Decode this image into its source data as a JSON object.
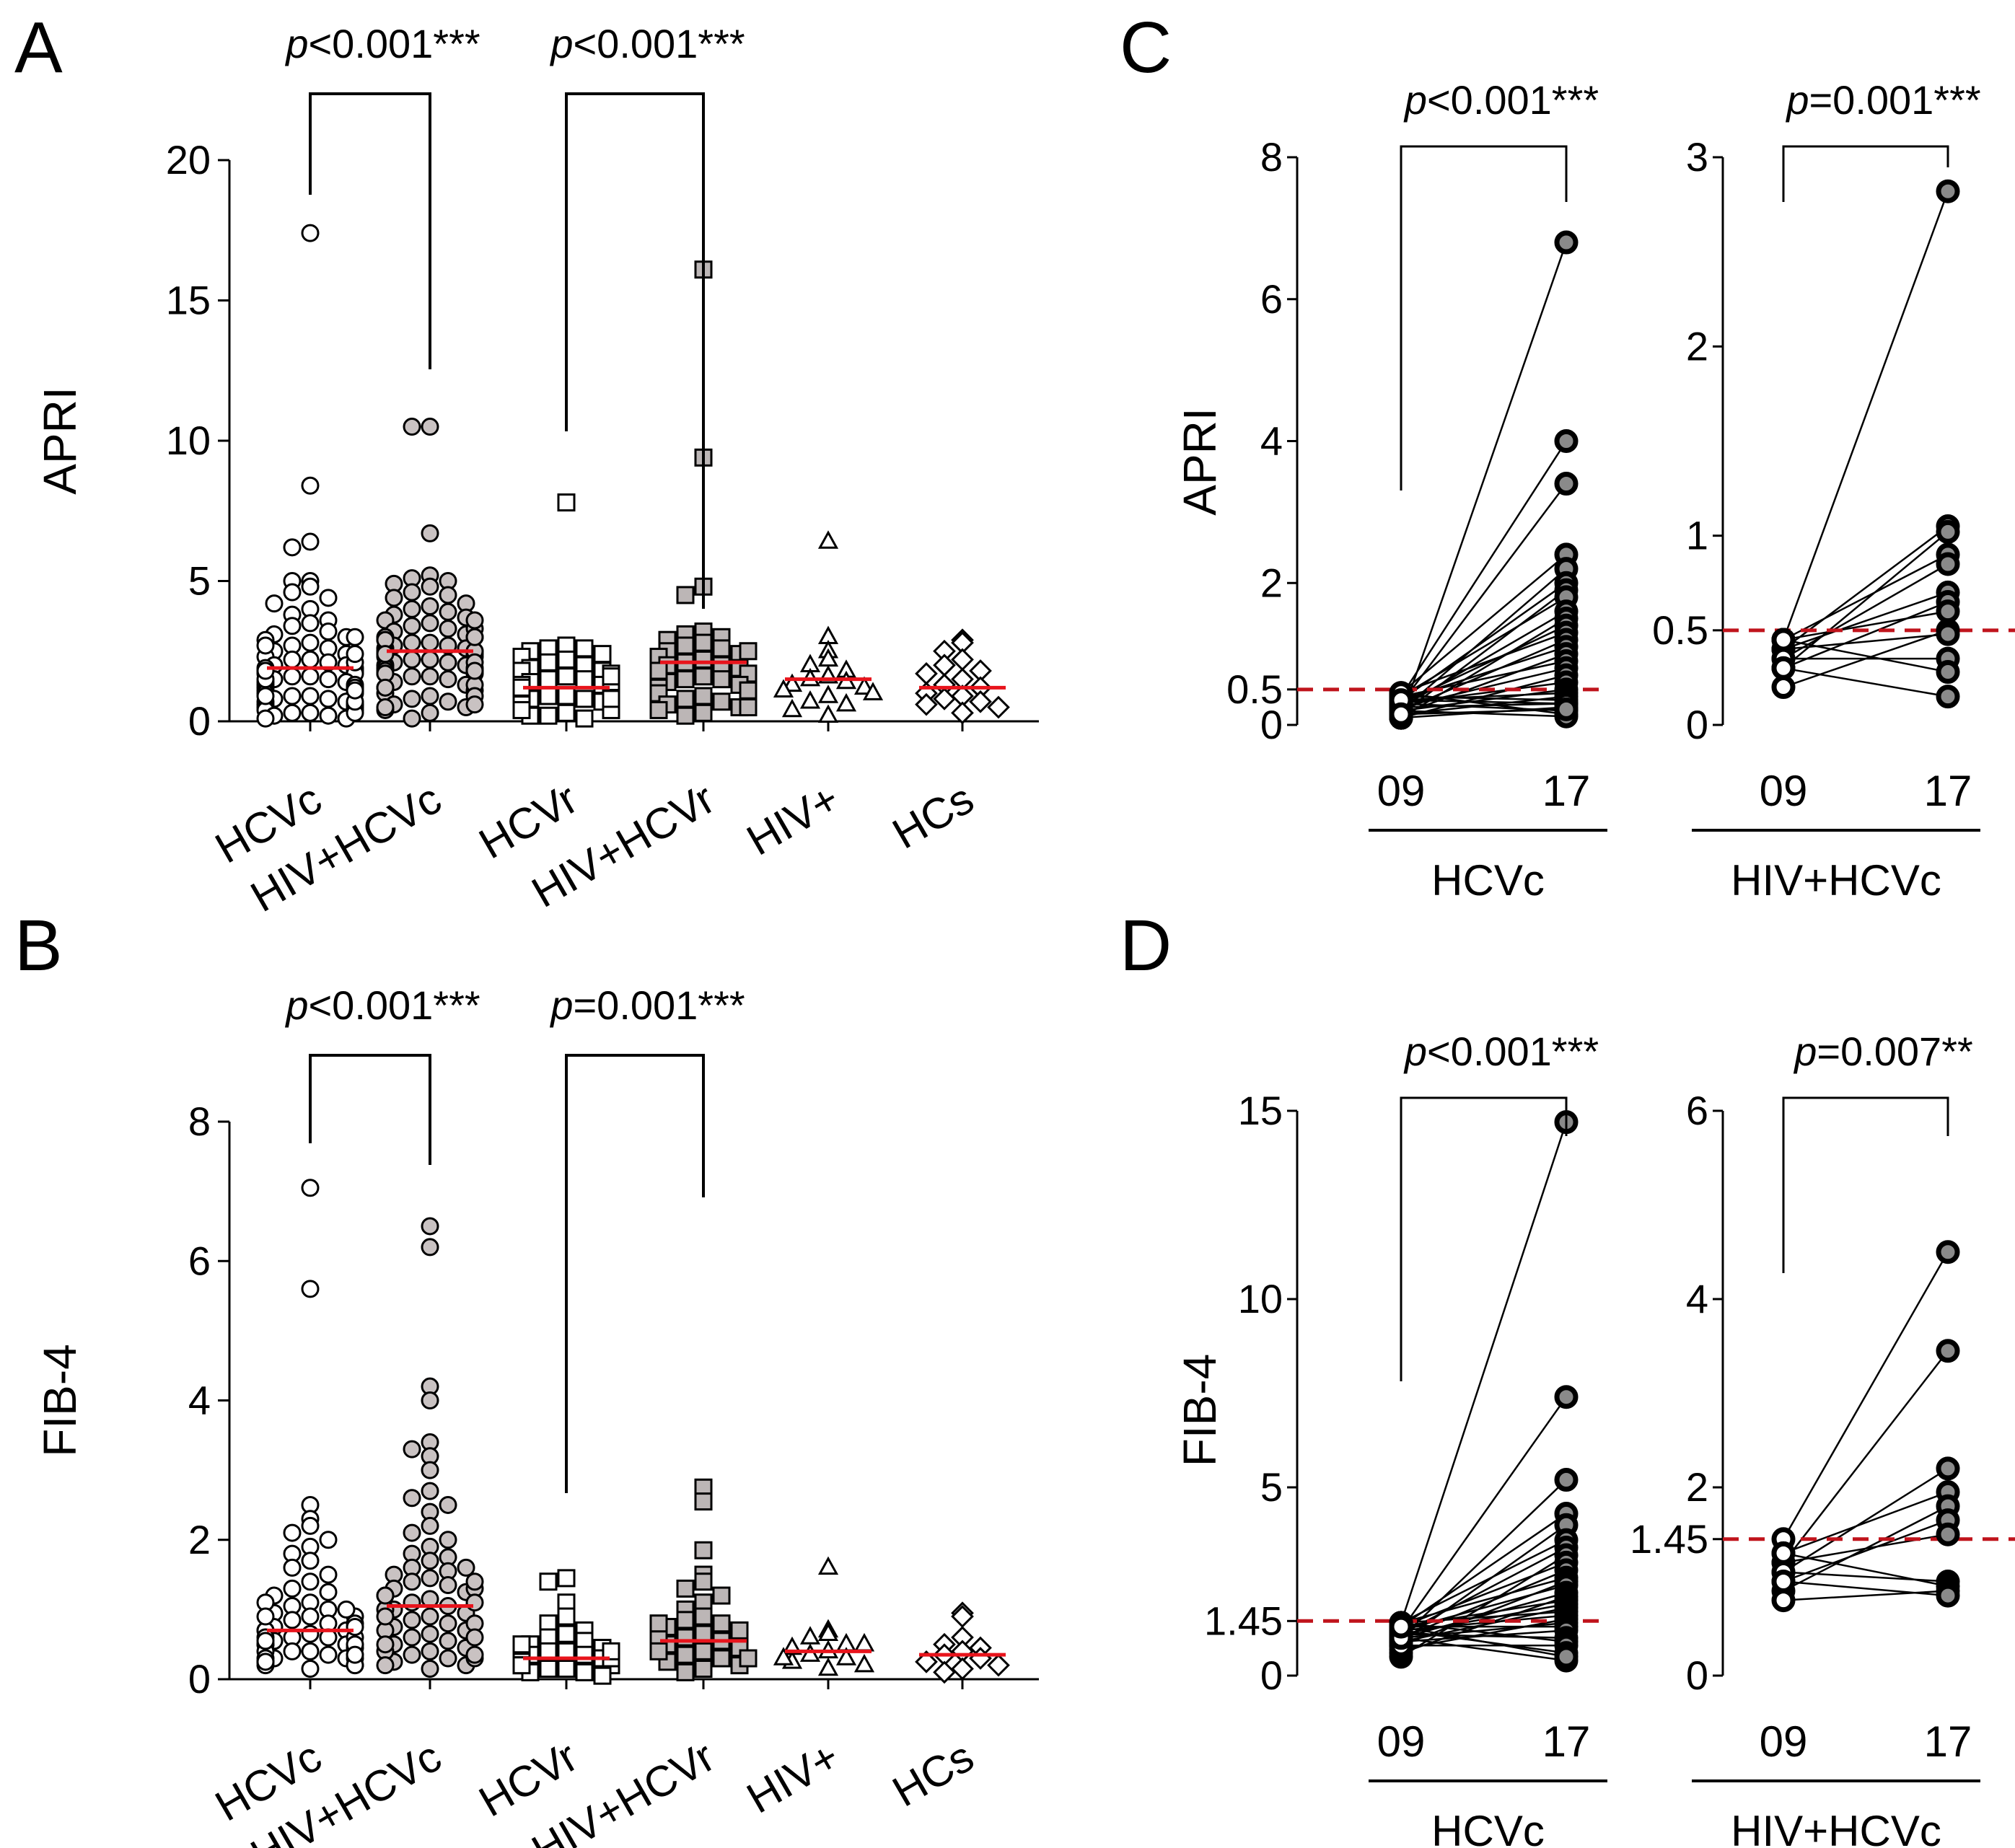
{
  "chart_data": [
    {
      "id": "A",
      "type": "scatter",
      "panel_label": "A",
      "ylabel": "APRI",
      "ylim": [
        0,
        20
      ],
      "yticks": [
        "0",
        "5",
        "10",
        "15",
        "20"
      ],
      "categories": [
        "HCVc",
        "HIV+HCVc",
        "HCVr",
        "HIV+HCVr",
        "HIV+",
        "HCs"
      ],
      "comparisons": [
        {
          "from": "HCVc",
          "to": "HIV+HCVc",
          "p_italic": "p",
          "p_text": "<0.001***"
        },
        {
          "from": "HCVr",
          "to": "HIV+HCVr",
          "p_italic": "p",
          "p_text": "<0.001***"
        }
      ],
      "median_color": "#e8141c",
      "groups": [
        {
          "name": "HCVc",
          "marker": "circle",
          "fill": "#ffffff",
          "median": 1.9,
          "values": [
            17.4,
            8.4,
            6.4,
            6.2,
            5.0,
            5.0,
            4.8,
            4.6,
            4.4,
            4.2,
            4.0,
            3.8,
            3.6,
            3.5,
            3.4,
            3.2,
            3.1,
            3.0,
            2.9,
            2.8,
            2.7,
            2.6,
            2.5,
            2.4,
            2.3,
            2.2,
            2.2,
            2.1,
            2.0,
            2.0,
            1.9,
            1.9,
            1.8,
            1.8,
            1.7,
            1.7,
            1.6,
            1.6,
            1.5,
            1.5,
            1.4,
            1.4,
            1.3,
            1.3,
            1.2,
            1.2,
            1.1,
            1.1,
            1.0,
            1.0,
            0.9,
            0.9,
            0.8,
            0.8,
            0.7,
            0.7,
            0.6,
            0.6,
            0.5,
            0.5,
            0.4,
            0.4,
            0.3,
            0.3,
            0.2,
            0.2,
            0.1,
            0.1,
            0.6,
            0.9,
            1.2,
            1.5,
            1.8,
            2.1,
            2.4,
            2.7,
            3.0,
            0.3,
            0.7,
            1.1
          ]
        },
        {
          "name": "HIV+HCVc",
          "marker": "circle",
          "fill": "#c9c2c2",
          "median": 2.5,
          "values": [
            10.5,
            10.5,
            6.7,
            5.2,
            5.1,
            5.0,
            4.9,
            4.8,
            4.6,
            4.5,
            4.4,
            4.2,
            4.1,
            4.0,
            3.9,
            3.8,
            3.7,
            3.6,
            3.5,
            3.4,
            3.3,
            3.2,
            3.1,
            3.0,
            3.0,
            2.9,
            2.8,
            2.8,
            2.7,
            2.7,
            2.6,
            2.6,
            2.5,
            2.5,
            2.4,
            2.4,
            2.3,
            2.3,
            2.2,
            2.2,
            2.1,
            2.1,
            2.0,
            2.0,
            1.9,
            1.9,
            1.8,
            1.8,
            1.7,
            1.7,
            1.6,
            1.6,
            1.5,
            1.4,
            1.3,
            1.2,
            1.1,
            1.0,
            0.9,
            0.8,
            0.7,
            0.6,
            0.5,
            0.4,
            0.3,
            0.1,
            3.3,
            2.9,
            2.5,
            2.1,
            1.7,
            1.3,
            0.9,
            0.5,
            3.6,
            3.0,
            2.4,
            1.8,
            1.2,
            0.6
          ]
        },
        {
          "name": "HCVr",
          "marker": "square",
          "fill": "#ffffff",
          "median": 1.2,
          "values": [
            7.8,
            2.7,
            2.6,
            2.6,
            2.5,
            2.4,
            2.3,
            2.2,
            2.1,
            2.0,
            1.9,
            1.8,
            1.8,
            1.7,
            1.6,
            1.5,
            1.5,
            1.4,
            1.3,
            1.3,
            1.2,
            1.2,
            1.1,
            1.1,
            1.0,
            1.0,
            0.9,
            0.9,
            0.8,
            0.8,
            0.7,
            0.7,
            0.6,
            0.6,
            0.5,
            0.5,
            0.4,
            0.3,
            0.2,
            0.1,
            1.4,
            1.0,
            0.6,
            0.2,
            1.6,
            1.2,
            0.8,
            0.4
          ]
        },
        {
          "name": "HIV+HCVr",
          "marker": "square",
          "fill": "#bcb6b6",
          "median": 2.1,
          "values": [
            16.1,
            9.4,
            4.8,
            4.5,
            3.2,
            3.1,
            3.0,
            2.9,
            2.8,
            2.7,
            2.6,
            2.5,
            2.4,
            2.3,
            2.2,
            2.1,
            2.0,
            2.0,
            1.9,
            1.8,
            1.7,
            1.6,
            1.5,
            1.5,
            1.4,
            1.3,
            1.2,
            1.1,
            1.0,
            0.9,
            0.8,
            0.7,
            0.6,
            0.5,
            0.4,
            0.3,
            0.2,
            2.5,
            1.8,
            1.1,
            0.5
          ]
        },
        {
          "name": "HIV+",
          "marker": "triangle",
          "fill": "#ffffff",
          "median": 1.5,
          "values": [
            6.4,
            3.0,
            2.5,
            2.2,
            2.0,
            1.8,
            1.6,
            1.5,
            1.4,
            1.3,
            1.2,
            1.1,
            1.0,
            0.9,
            0.7,
            0.6,
            0.4,
            0.2
          ]
        },
        {
          "name": "HCs",
          "marker": "diamond",
          "fill": "#ffffff",
          "median": 1.2,
          "values": [
            2.9,
            2.8,
            2.5,
            2.2,
            2.0,
            1.8,
            1.7,
            1.5,
            1.3,
            1.2,
            1.0,
            0.9,
            0.8,
            0.7,
            0.6,
            0.5,
            0.3
          ]
        }
      ]
    },
    {
      "id": "B",
      "type": "scatter",
      "panel_label": "B",
      "ylabel": "FIB-4",
      "ylim": [
        0,
        8
      ],
      "yticks": [
        "0",
        "2",
        "4",
        "6",
        "8"
      ],
      "categories": [
        "HCVc",
        "HIV+HCVc",
        "HCVr",
        "HIV+HCVr",
        "HIV+",
        "HCs"
      ],
      "comparisons": [
        {
          "from": "HCVc",
          "to": "HIV+HCVc",
          "p_italic": "p",
          "p_text": "<0.001***"
        },
        {
          "from": "HCVr",
          "to": "HIV+HCVr",
          "p_italic": "p",
          "p_text": "=0.001***"
        }
      ],
      "median_color": "#e8141c",
      "groups": [
        {
          "name": "HCVc",
          "marker": "circle",
          "fill": "#ffffff",
          "median": 0.7,
          "values": [
            7.05,
            5.6,
            2.5,
            2.3,
            2.2,
            2.1,
            2.0,
            1.9,
            1.8,
            1.7,
            1.6,
            1.5,
            1.4,
            1.3,
            1.25,
            1.2,
            1.1,
            1.05,
            1.0,
            0.95,
            0.9,
            0.85,
            0.8,
            0.75,
            0.7,
            0.7,
            0.65,
            0.6,
            0.6,
            0.55,
            0.5,
            0.5,
            0.45,
            0.4,
            0.4,
            0.35,
            0.3,
            0.3,
            0.25,
            0.2,
            0.2,
            0.15,
            0.9,
            0.7,
            0.5,
            0.3,
            1.0,
            0.8,
            0.6,
            0.4,
            0.2,
            1.1,
            0.9,
            0.6,
            0.3,
            0.5,
            0.35,
            0.25,
            0.75,
            0.55
          ]
        },
        {
          "name": "HIV+HCVc",
          "marker": "circle",
          "fill": "#c9c2c2",
          "median": 1.05,
          "values": [
            6.5,
            6.2,
            4.2,
            4.0,
            3.4,
            3.3,
            3.2,
            3.0,
            2.7,
            2.6,
            2.5,
            2.4,
            2.2,
            2.1,
            2.0,
            1.9,
            1.8,
            1.75,
            1.7,
            1.6,
            1.55,
            1.5,
            1.45,
            1.4,
            1.35,
            1.3,
            1.25,
            1.2,
            1.15,
            1.1,
            1.05,
            1.0,
            0.95,
            0.9,
            0.85,
            0.8,
            0.75,
            0.7,
            0.65,
            0.6,
            0.55,
            0.5,
            0.45,
            0.4,
            0.35,
            0.3,
            0.25,
            0.2,
            0.15,
            1.3,
            1.0,
            0.7,
            0.4,
            1.6,
            1.2,
            0.8,
            0.5,
            0.3,
            1.1,
            0.6,
            0.9,
            0.2,
            1.4,
            0.35
          ]
        },
        {
          "name": "HCVr",
          "marker": "square",
          "fill": "#ffffff",
          "median": 0.3,
          "values": [
            1.45,
            1.4,
            1.1,
            0.9,
            0.8,
            0.7,
            0.65,
            0.6,
            0.55,
            0.5,
            0.45,
            0.4,
            0.4,
            0.35,
            0.35,
            0.3,
            0.3,
            0.25,
            0.25,
            0.2,
            0.2,
            0.15,
            0.15,
            0.1,
            0.1,
            0.05,
            0.5,
            0.3,
            0.2,
            0.4
          ]
        },
        {
          "name": "HIV+HCVr",
          "marker": "square",
          "fill": "#bcb6b6",
          "median": 0.55,
          "values": [
            2.75,
            2.55,
            1.85,
            1.5,
            1.4,
            1.3,
            1.2,
            1.1,
            1.0,
            0.9,
            0.85,
            0.8,
            0.75,
            0.7,
            0.65,
            0.6,
            0.55,
            0.5,
            0.45,
            0.4,
            0.35,
            0.3,
            0.25,
            0.2,
            0.15,
            0.1,
            0.6,
            0.4,
            0.3,
            0.8
          ]
        },
        {
          "name": "HIV+",
          "marker": "triangle",
          "fill": "#ffffff",
          "median": 0.4,
          "values": [
            1.6,
            0.7,
            0.65,
            0.6,
            0.5,
            0.45,
            0.4,
            0.35,
            0.3,
            0.25,
            0.2,
            0.15,
            0.5,
            0.3
          ]
        },
        {
          "name": "HCs",
          "marker": "diamond",
          "fill": "#ffffff",
          "median": 0.35,
          "values": [
            0.95,
            0.9,
            0.6,
            0.5,
            0.45,
            0.4,
            0.35,
            0.3,
            0.25,
            0.2,
            0.15,
            0.1
          ]
        }
      ]
    },
    {
      "id": "C1",
      "type": "line",
      "panel_label": "C",
      "ylabel": "APRI",
      "ylim": [
        0,
        8
      ],
      "yticks": [
        "0",
        "0.5",
        "2",
        "4",
        "6",
        "8"
      ],
      "ytick_values": [
        0,
        0.5,
        2,
        4,
        6,
        8
      ],
      "x": [
        "09",
        "17"
      ],
      "group_label": "HCVc",
      "threshold": 0.5,
      "threshold_color": "#c0141c",
      "comparison": {
        "p_italic": "p",
        "p_text": "<0.001***"
      },
      "pairs": [
        [
          0.1,
          6.8
        ],
        [
          0.4,
          4.0
        ],
        [
          0.3,
          3.4
        ],
        [
          0.45,
          2.4
        ],
        [
          0.2,
          2.2
        ],
        [
          0.35,
          2.0
        ],
        [
          0.15,
          1.9
        ],
        [
          0.4,
          1.8
        ],
        [
          0.25,
          1.6
        ],
        [
          0.1,
          1.5
        ],
        [
          0.3,
          1.4
        ],
        [
          0.45,
          1.3
        ],
        [
          0.2,
          1.2
        ],
        [
          0.35,
          1.1
        ],
        [
          0.15,
          1.0
        ],
        [
          0.4,
          0.9
        ],
        [
          0.25,
          0.8
        ],
        [
          0.1,
          0.7
        ],
        [
          0.3,
          0.6
        ],
        [
          0.2,
          0.5
        ],
        [
          0.35,
          0.45
        ],
        [
          0.15,
          0.4
        ],
        [
          0.4,
          0.35
        ],
        [
          0.25,
          0.3
        ],
        [
          0.1,
          0.25
        ],
        [
          0.3,
          0.2
        ],
        [
          0.45,
          0.15
        ],
        [
          0.2,
          0.12
        ],
        [
          0.35,
          0.3
        ],
        [
          0.15,
          0.22
        ]
      ]
    },
    {
      "id": "C2",
      "type": "line",
      "ylim": [
        0,
        3
      ],
      "yticks": [
        "0",
        "0.5",
        "1",
        "2",
        "3"
      ],
      "ytick_values": [
        0,
        0.5,
        1,
        2,
        3
      ],
      "x": [
        "09",
        "17"
      ],
      "group_label": "HIV+HCVc",
      "threshold": 0.5,
      "threshold_color": "#c0141c",
      "comparison": {
        "p_italic": "p",
        "p_text": "=0.001***"
      },
      "pairs": [
        [
          0.45,
          2.82
        ],
        [
          0.4,
          1.05
        ],
        [
          0.3,
          1.02
        ],
        [
          0.45,
          0.9
        ],
        [
          0.35,
          0.85
        ],
        [
          0.4,
          0.7
        ],
        [
          0.3,
          0.65
        ],
        [
          0.45,
          0.6
        ],
        [
          0.2,
          0.5
        ],
        [
          0.4,
          0.48
        ],
        [
          0.35,
          0.35
        ],
        [
          0.45,
          0.28
        ],
        [
          0.3,
          0.15
        ]
      ]
    },
    {
      "id": "D1",
      "type": "line",
      "panel_label": "D",
      "ylabel": "FIB-4",
      "ylim": [
        0,
        15
      ],
      "yticks": [
        "0",
        "1.45",
        "5",
        "10",
        "15"
      ],
      "ytick_values": [
        0,
        1.45,
        5,
        10,
        15
      ],
      "x": [
        "09",
        "17"
      ],
      "group_label": "HCVc",
      "threshold": 1.45,
      "threshold_color": "#c0141c",
      "comparison": {
        "p_italic": "p",
        "p_text": "<0.001***"
      },
      "pairs": [
        [
          1.4,
          14.7
        ],
        [
          1.2,
          7.4
        ],
        [
          1.0,
          5.2
        ],
        [
          1.3,
          4.3
        ],
        [
          0.9,
          4.0
        ],
        [
          1.4,
          3.6
        ],
        [
          1.1,
          3.4
        ],
        [
          0.5,
          3.2
        ],
        [
          1.3,
          3.0
        ],
        [
          1.0,
          2.8
        ],
        [
          1.4,
          2.6
        ],
        [
          0.8,
          2.5
        ],
        [
          1.2,
          2.4
        ],
        [
          1.0,
          2.2
        ],
        [
          0.6,
          2.1
        ],
        [
          1.3,
          2.0
        ],
        [
          1.1,
          1.9
        ],
        [
          0.9,
          1.8
        ],
        [
          1.4,
          1.7
        ],
        [
          1.2,
          1.6
        ],
        [
          0.7,
          1.5
        ],
        [
          1.0,
          1.4
        ],
        [
          1.3,
          1.3
        ],
        [
          0.9,
          1.2
        ],
        [
          1.1,
          1.0
        ],
        [
          1.4,
          0.9
        ],
        [
          0.8,
          0.8
        ],
        [
          1.2,
          0.6
        ],
        [
          1.0,
          0.4
        ],
        [
          1.3,
          0.5
        ]
      ]
    },
    {
      "id": "D2",
      "type": "line",
      "ylim": [
        0,
        6
      ],
      "yticks": [
        "0",
        "1.45",
        "2",
        "4",
        "6"
      ],
      "ytick_values": [
        0,
        1.45,
        2,
        4,
        6
      ],
      "x": [
        "09",
        "17"
      ],
      "group_label": "HIV+HCVc",
      "threshold": 1.45,
      "threshold_color": "#c0141c",
      "comparison": {
        "p_italic": "p",
        "p_text": "=0.007**"
      },
      "pairs": [
        [
          1.45,
          4.5
        ],
        [
          1.2,
          3.45
        ],
        [
          1.1,
          2.2
        ],
        [
          1.3,
          1.95
        ],
        [
          0.9,
          1.8
        ],
        [
          1.0,
          1.65
        ],
        [
          1.2,
          1.5
        ],
        [
          1.1,
          1.0
        ],
        [
          1.3,
          0.95
        ],
        [
          0.8,
          0.9
        ],
        [
          1.0,
          0.85
        ]
      ]
    }
  ]
}
